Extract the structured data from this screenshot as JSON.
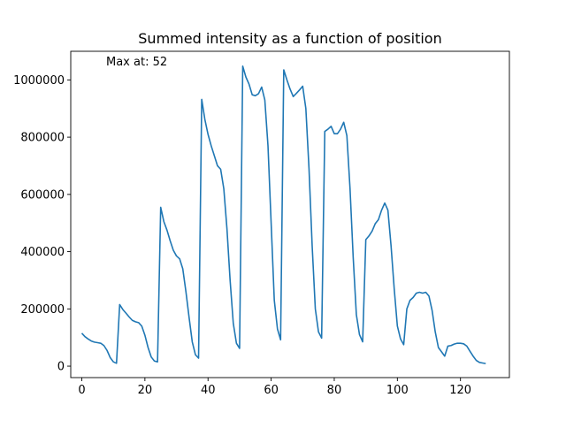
{
  "chart_data": {
    "type": "line",
    "title": "Summed intensity as a function of position",
    "xlabel": "",
    "ylabel": "",
    "annotation": "Max at: 52",
    "xlim": [
      -3.5,
      135.5
    ],
    "ylim": [
      -40000,
      1100000
    ],
    "x_ticks": [
      0,
      20,
      40,
      60,
      80,
      100,
      120
    ],
    "y_ticks": [
      0,
      200000,
      400000,
      600000,
      800000,
      1000000
    ],
    "grid": false,
    "line_color": "#1f77b4",
    "series": [
      {
        "values": [
          [
            0,
            115000
          ],
          [
            1,
            103000
          ],
          [
            2,
            95000
          ],
          [
            3,
            88000
          ],
          [
            4,
            84000
          ],
          [
            5,
            82000
          ],
          [
            6,
            80000
          ],
          [
            7,
            72000
          ],
          [
            8,
            55000
          ],
          [
            9,
            30000
          ],
          [
            10,
            15000
          ],
          [
            11,
            10000
          ],
          [
            12,
            215000
          ],
          [
            13,
            198000
          ],
          [
            14,
            185000
          ],
          [
            15,
            172000
          ],
          [
            16,
            160000
          ],
          [
            17,
            155000
          ],
          [
            18,
            152000
          ],
          [
            19,
            140000
          ],
          [
            20,
            108000
          ],
          [
            21,
            65000
          ],
          [
            22,
            32000
          ],
          [
            23,
            18000
          ],
          [
            24,
            15000
          ],
          [
            25,
            555000
          ],
          [
            26,
            505000
          ],
          [
            27,
            475000
          ],
          [
            28,
            438000
          ],
          [
            29,
            405000
          ],
          [
            30,
            385000
          ],
          [
            31,
            375000
          ],
          [
            32,
            340000
          ],
          [
            33,
            260000
          ],
          [
            34,
            170000
          ],
          [
            35,
            85000
          ],
          [
            36,
            40000
          ],
          [
            37,
            28000
          ],
          [
            38,
            932000
          ],
          [
            39,
            862000
          ],
          [
            40,
            810000
          ],
          [
            41,
            770000
          ],
          [
            42,
            735000
          ],
          [
            43,
            700000
          ],
          [
            44,
            688000
          ],
          [
            45,
            620000
          ],
          [
            46,
            480000
          ],
          [
            47,
            300000
          ],
          [
            48,
            150000
          ],
          [
            49,
            80000
          ],
          [
            50,
            62000
          ],
          [
            51,
            1048000
          ],
          [
            52,
            1010000
          ],
          [
            53,
            985000
          ],
          [
            54,
            948000
          ],
          [
            55,
            945000
          ],
          [
            56,
            952000
          ],
          [
            57,
            975000
          ],
          [
            58,
            930000
          ],
          [
            59,
            770000
          ],
          [
            60,
            500000
          ],
          [
            61,
            230000
          ],
          [
            62,
            130000
          ],
          [
            63,
            92000
          ],
          [
            64,
            1035000
          ],
          [
            65,
            1000000
          ],
          [
            66,
            968000
          ],
          [
            67,
            942000
          ],
          [
            68,
            953000
          ],
          [
            69,
            965000
          ],
          [
            70,
            978000
          ],
          [
            71,
            900000
          ],
          [
            72,
            690000
          ],
          [
            73,
            420000
          ],
          [
            74,
            200000
          ],
          [
            75,
            120000
          ],
          [
            76,
            98000
          ],
          [
            77,
            820000
          ],
          [
            78,
            828000
          ],
          [
            79,
            838000
          ],
          [
            80,
            812000
          ],
          [
            81,
            812000
          ],
          [
            82,
            828000
          ],
          [
            83,
            852000
          ],
          [
            84,
            805000
          ],
          [
            85,
            620000
          ],
          [
            86,
            380000
          ],
          [
            87,
            180000
          ],
          [
            88,
            110000
          ],
          [
            89,
            85000
          ],
          [
            90,
            442000
          ],
          [
            91,
            455000
          ],
          [
            92,
            472000
          ],
          [
            93,
            498000
          ],
          [
            94,
            512000
          ],
          [
            95,
            545000
          ],
          [
            96,
            570000
          ],
          [
            97,
            545000
          ],
          [
            98,
            420000
          ],
          [
            99,
            270000
          ],
          [
            100,
            140000
          ],
          [
            101,
            95000
          ],
          [
            102,
            75000
          ],
          [
            103,
            200000
          ],
          [
            104,
            230000
          ],
          [
            105,
            240000
          ],
          [
            106,
            255000
          ],
          [
            107,
            258000
          ],
          [
            108,
            255000
          ],
          [
            109,
            258000
          ],
          [
            110,
            245000
          ],
          [
            111,
            195000
          ],
          [
            112,
            120000
          ],
          [
            113,
            65000
          ],
          [
            114,
            50000
          ],
          [
            115,
            35000
          ],
          [
            116,
            70000
          ],
          [
            117,
            72000
          ],
          [
            118,
            77000
          ],
          [
            119,
            80000
          ],
          [
            120,
            80000
          ],
          [
            121,
            78000
          ],
          [
            122,
            70000
          ],
          [
            123,
            52000
          ],
          [
            124,
            35000
          ],
          [
            125,
            20000
          ],
          [
            126,
            13000
          ],
          [
            127,
            11000
          ],
          [
            128,
            9000
          ]
        ]
      }
    ]
  }
}
